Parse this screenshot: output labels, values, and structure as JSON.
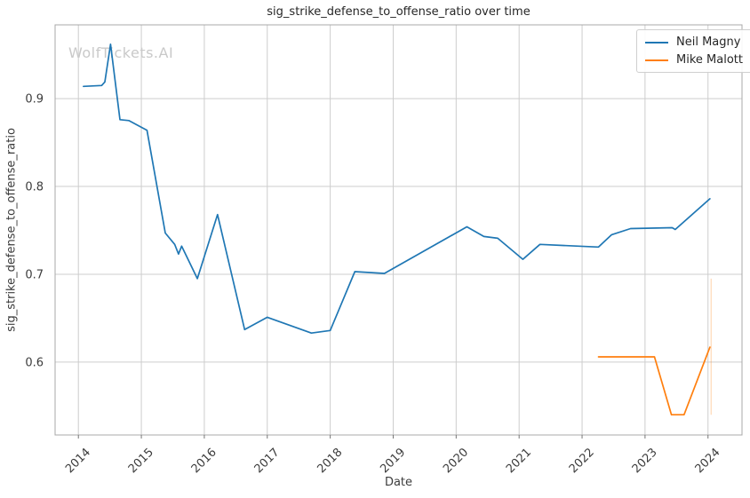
{
  "watermark": "WolfTickets.AI",
  "colors": {
    "background": "#ffffff",
    "grid": "#cdcdcd",
    "spine": "#a8a8a8",
    "tick_mark": "#767676",
    "tick_label": "#3c3c3c",
    "title": "#262626",
    "watermark": "#c9c9c9",
    "series_blue": "#1f77b4",
    "series_orange": "#ff7f0e"
  },
  "chart_data": {
    "type": "line",
    "title": "sig_strike_defense_to_offense_ratio over time",
    "xlabel": "Date",
    "ylabel": "sig_strike_defense_to_offense_ratio",
    "grid": true,
    "legend_position": "upper right",
    "xlim": [
      2013.63,
      2024.54
    ],
    "ylim": [
      0.517,
      0.984
    ],
    "x_ticks": [
      2014,
      2015,
      2016,
      2017,
      2018,
      2019,
      2020,
      2021,
      2022,
      2023,
      2024
    ],
    "y_ticks": [
      0.6,
      0.7,
      0.8,
      0.9
    ],
    "series": [
      {
        "name": "Neil Magny",
        "color": "#1f77b4",
        "points": [
          [
            2014.08,
            0.914
          ],
          [
            2014.37,
            0.915
          ],
          [
            2014.42,
            0.919
          ],
          [
            2014.51,
            0.962
          ],
          [
            2014.66,
            0.876
          ],
          [
            2014.8,
            0.875
          ],
          [
            2015.09,
            0.864
          ],
          [
            2015.38,
            0.747
          ],
          [
            2015.53,
            0.734
          ],
          [
            2015.59,
            0.723
          ],
          [
            2015.64,
            0.732
          ],
          [
            2015.89,
            0.695
          ],
          [
            2016.21,
            0.768
          ],
          [
            2016.64,
            0.637
          ],
          [
            2017.0,
            0.651
          ],
          [
            2017.7,
            0.633
          ],
          [
            2018.0,
            0.636
          ],
          [
            2018.39,
            0.703
          ],
          [
            2018.86,
            0.701
          ],
          [
            2020.17,
            0.754
          ],
          [
            2020.44,
            0.743
          ],
          [
            2020.66,
            0.741
          ],
          [
            2021.06,
            0.717
          ],
          [
            2021.33,
            0.734
          ],
          [
            2022.26,
            0.731
          ],
          [
            2022.47,
            0.745
          ],
          [
            2022.77,
            0.752
          ],
          [
            2023.43,
            0.753
          ],
          [
            2023.48,
            0.751
          ],
          [
            2024.03,
            0.786
          ]
        ]
      },
      {
        "name": "Mike Malott",
        "color": "#ff7f0e",
        "points": [
          [
            2022.26,
            0.606
          ],
          [
            2023.15,
            0.606
          ],
          [
            2023.42,
            0.54
          ],
          [
            2023.62,
            0.54
          ],
          [
            2024.03,
            0.617
          ]
        ]
      }
    ],
    "annotations": [
      {
        "type": "vline",
        "x": 2024.05,
        "y0": 0.54,
        "y1": 0.695,
        "color": "#ff7f0e",
        "opacity": 0.28
      }
    ]
  }
}
